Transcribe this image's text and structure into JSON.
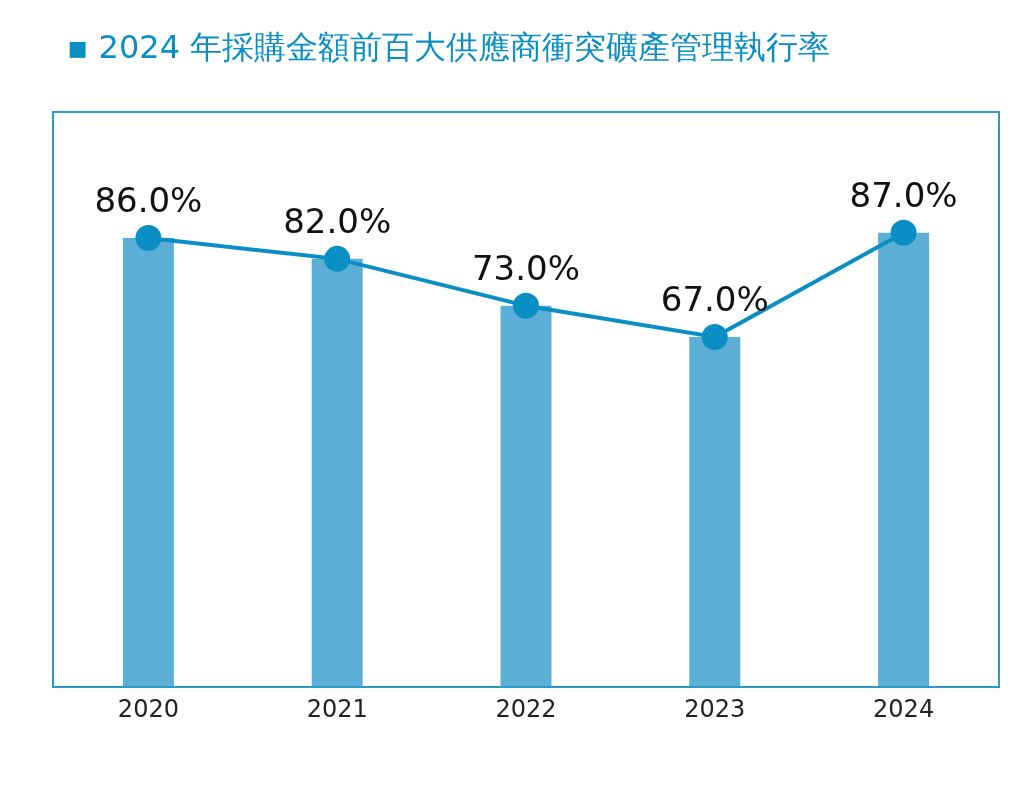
{
  "chart_data": {
    "type": "bar",
    "title": "▪ 2024 年採購金額前百大供應商衝突礦產管理執行率",
    "categories": [
      "2020",
      "2021",
      "2022",
      "2023",
      "2024"
    ],
    "series": [
      {
        "color": "#5bafd6",
        "values": [
          86.0,
          82.0,
          73.0,
          67.0,
          87.0
        ]
      },
      {
        "type": "line",
        "color": "#0a8fc4",
        "values": [
          86.0,
          82.0,
          73.0,
          67.0,
          87.0
        ],
        "value_labels": [
          "86.0%",
          "82.0%",
          "73.0%",
          "67.0%",
          "87.0%"
        ]
      }
    ],
    "ylim": [
      0,
      110
    ],
    "tick_labels": "x",
    "marker": "circle",
    "line_style": "solid"
  }
}
